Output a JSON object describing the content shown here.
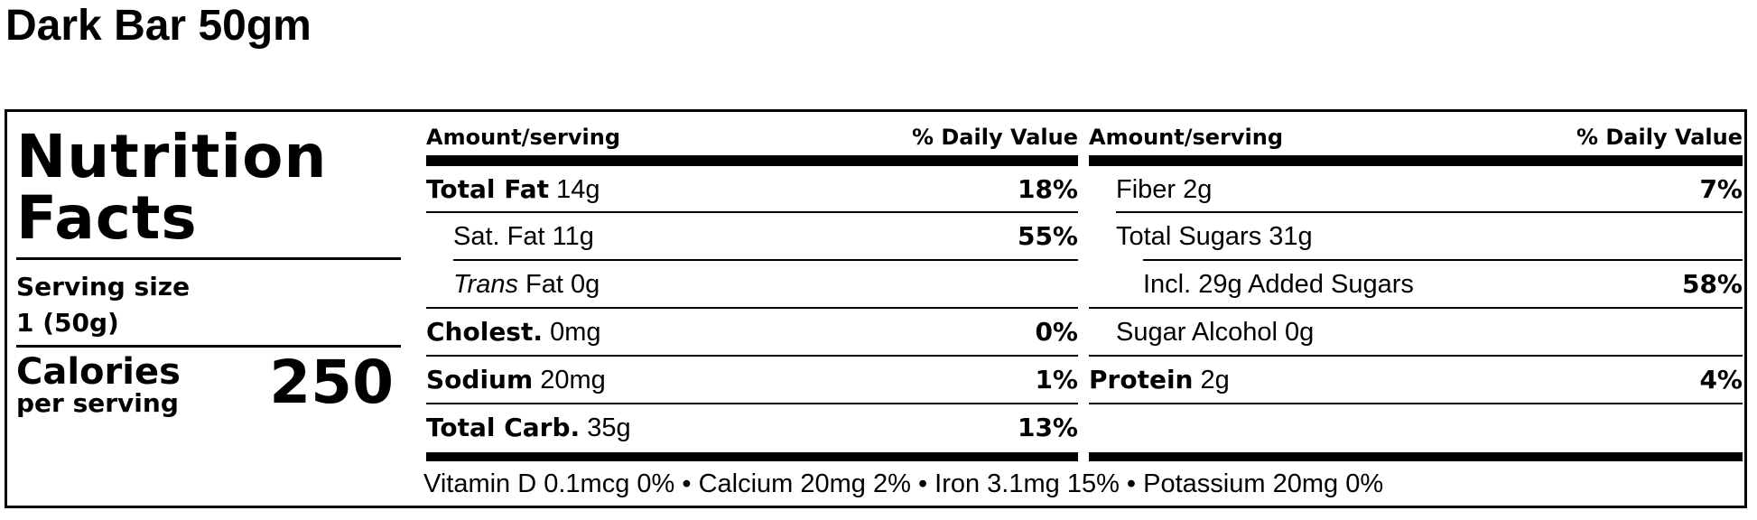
{
  "product_title": "Dark Bar 50gm",
  "label": {
    "heading_line1": "Nutrition",
    "heading_line2": "Facts",
    "serving_size_label": "Serving size",
    "serving_size_value": "1 (50g)",
    "calories_label": "Calories",
    "calories_sublabel": "per serving",
    "calories_value": "250",
    "left_col": {
      "amount_header": "Amount/serving",
      "dv_header": "% Daily Value",
      "rows": [
        {
          "name_bold": "Total Fat",
          "amount": "14g",
          "dv": "18%"
        },
        {
          "name": "Sat. Fat",
          "amount": "11g",
          "dv": "55%"
        },
        {
          "name_italic": "Trans",
          "name": "Fat",
          "amount": "0g",
          "dv": ""
        },
        {
          "name_bold": "Cholest.",
          "amount": "0mg",
          "dv": "0%"
        },
        {
          "name_bold": "Sodium",
          "amount": "20mg",
          "dv": "1%"
        },
        {
          "name_bold": "Total Carb.",
          "amount": "35g",
          "dv": "13%"
        }
      ]
    },
    "right_col": {
      "amount_header": "Amount/serving",
      "dv_header": "% Daily Value",
      "rows": [
        {
          "name": "Fiber",
          "amount": "2g",
          "dv": "7%"
        },
        {
          "name": "Total Sugars",
          "amount": "31g",
          "dv": ""
        },
        {
          "name": "Incl. 29g Added Sugars",
          "amount": "",
          "dv": "58%"
        },
        {
          "name": "Sugar Alcohol",
          "amount": "0g",
          "dv": ""
        },
        {
          "name_bold": "Protein",
          "amount": "2g",
          "dv": "4%"
        }
      ]
    },
    "footer": "Vitamin D 0.1mcg 0% • Calcium 20mg 2% • Iron 3.1mg 15% • Potassium 20mg 0%"
  }
}
